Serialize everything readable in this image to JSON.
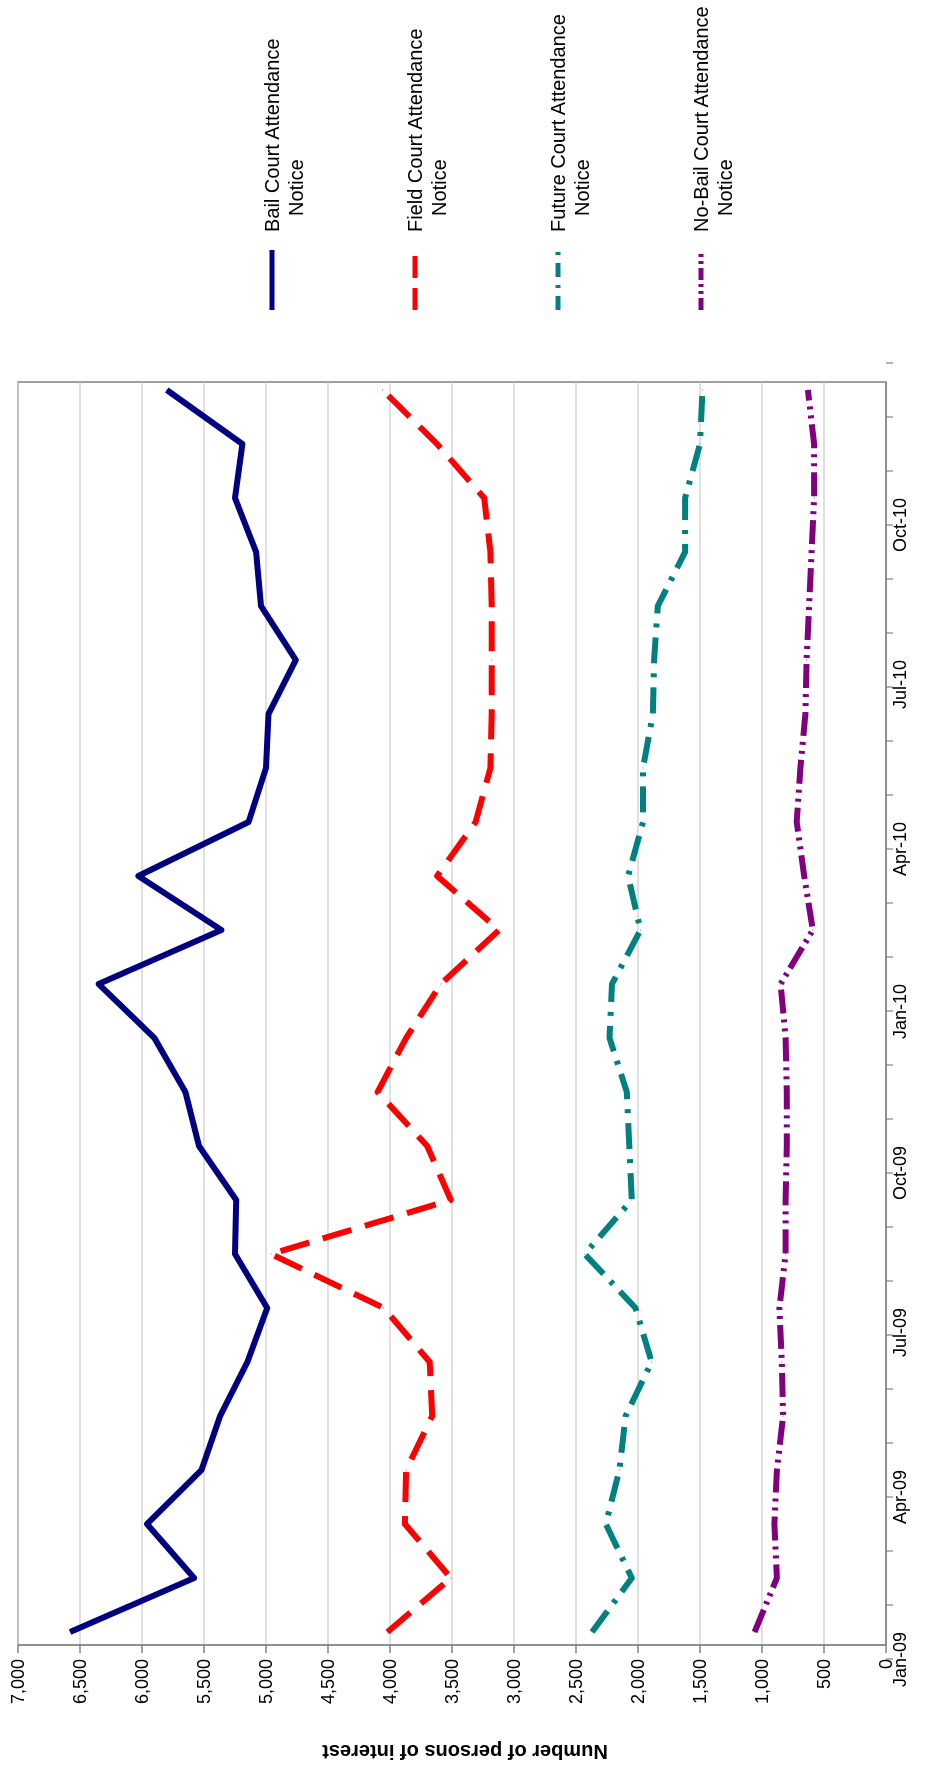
{
  "chart_data": {
    "type": "line",
    "orientation": "rotated-90-clockwise",
    "title": "",
    "xlabel": "",
    "ylabel": "Number of persons of interest",
    "ylim": [
      0,
      7000
    ],
    "y_ticks": [
      "0",
      "500",
      "1,000",
      "1,500",
      "2,000",
      "2,500",
      "3,000",
      "3,500",
      "4,000",
      "4,500",
      "5,000",
      "5,500",
      "6,000",
      "6,500",
      "7,000"
    ],
    "x": [
      "Jan-09",
      "Feb-09",
      "Mar-09",
      "Apr-09",
      "May-09",
      "Jun-09",
      "Jul-09",
      "Aug-09",
      "Sep-09",
      "Oct-09",
      "Nov-09",
      "Dec-09",
      "Jan-10",
      "Feb-10",
      "Mar-10",
      "Apr-10",
      "May-10",
      "Jun-10",
      "Jul-10",
      "Aug-10",
      "Sep-10",
      "Oct-10",
      "Nov-10",
      "Dec-10"
    ],
    "x_ticks": [
      "Jan-09",
      "Apr-09",
      "Jul-09",
      "Oct-09",
      "Jan-10",
      "Apr-10",
      "Jul-10",
      "Oct-10"
    ],
    "grid": "horizontal",
    "legend_position": "right",
    "series": [
      {
        "name": "Bail Court Attendance Notice",
        "color": "#000080",
        "style": "solid",
        "values": [
          6580,
          5580,
          5960,
          5520,
          5370,
          5150,
          4990,
          5250,
          5240,
          5540,
          5650,
          5900,
          6350,
          5360,
          6030,
          5140,
          5000,
          4980,
          4760,
          5040,
          5080,
          5250,
          5190,
          5800
        ]
      },
      {
        "name": "Field Court Attendance Notice",
        "color": "#ff0000",
        "style": "dash",
        "values": [
          4020,
          3510,
          3880,
          3870,
          3660,
          3680,
          4050,
          4960,
          3510,
          3700,
          4100,
          3870,
          3590,
          3120,
          3620,
          3310,
          3190,
          3180,
          3180,
          3180,
          3190,
          3240,
          3620,
          4060
        ]
      },
      {
        "name": "Future Court Attendance Notice",
        "color": "#008080",
        "style": "dashdot",
        "values": [
          2370,
          2050,
          2260,
          2150,
          2100,
          1890,
          2020,
          2430,
          2050,
          2070,
          2090,
          2230,
          2210,
          1980,
          2080,
          1960,
          1960,
          1880,
          1870,
          1840,
          1620,
          1620,
          1500,
          1480
        ]
      },
      {
        "name": "No-Bail Court Attendance Notice",
        "color": "#800080",
        "style": "dashdotdot",
        "values": [
          1060,
          880,
          900,
          880,
          830,
          840,
          860,
          810,
          810,
          800,
          800,
          810,
          850,
          590,
          660,
          720,
          690,
          650,
          640,
          620,
          600,
          580,
          580,
          630
        ]
      }
    ]
  }
}
